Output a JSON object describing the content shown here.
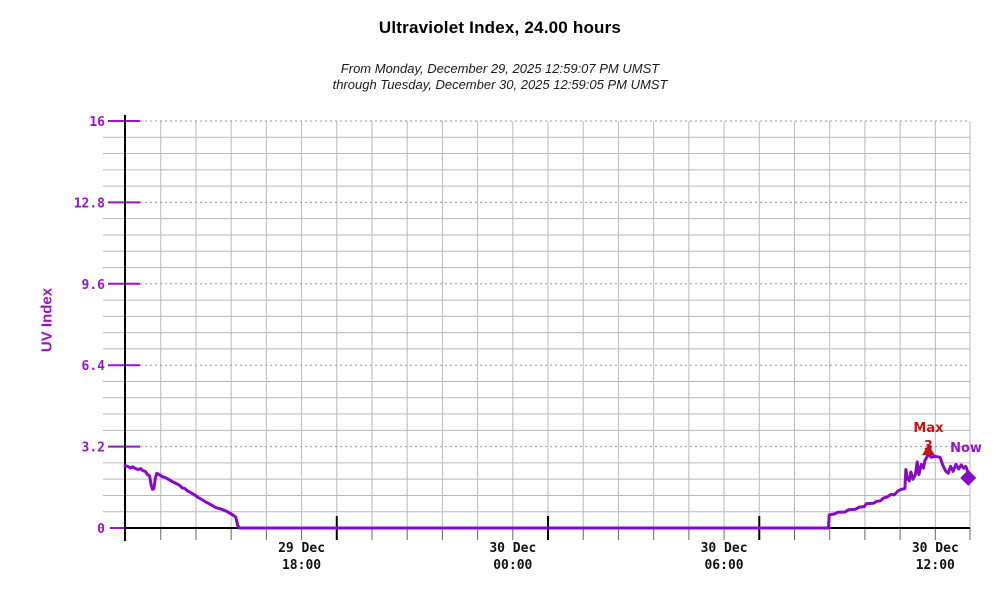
{
  "header": {
    "title": "Ultraviolet Index, 24.00 hours",
    "subtitle_line1": "From Monday, December 29, 2025 12:59:07 PM UMST",
    "subtitle_line2": "through Tuesday, December 30, 2025 12:59:05 PM UMST"
  },
  "colors": {
    "line": "#8808c8",
    "purple_text": "#9913cc",
    "max_red": "#cc1111",
    "grid_minor": "#b9b9b9",
    "grid_major_dotted": "#9a9a9a",
    "axis": "#000000",
    "x_label": "#111111",
    "minor_tick": "#666666"
  },
  "chart_data": {
    "type": "line",
    "title": "Ultraviolet Index, 24.00 hours",
    "xlabel": "",
    "ylabel": "UV Index",
    "ylim": [
      0,
      16
    ],
    "xlim_hours": [
      0,
      24
    ],
    "grid": "on",
    "y_ticks_major": [
      0,
      3.2,
      6.4,
      9.6,
      12.8,
      16
    ],
    "y_minor_step": 0.64,
    "x_minor_step_hours": 1,
    "x_first_hour_offset": 0.015,
    "x_ticks_major": [
      {
        "hour": 5.015,
        "line1": "29 Dec",
        "line2": "18:00"
      },
      {
        "hour": 11.015,
        "line1": "30 Dec",
        "line2": "00:00"
      },
      {
        "hour": 17.015,
        "line1": "30 Dec",
        "line2": "06:00"
      },
      {
        "hour": 23.015,
        "line1": "30 Dec",
        "line2": "12:00"
      }
    ],
    "series": [
      {
        "name": "UV Index",
        "points": [
          [
            0,
            2.45
          ],
          [
            0.08,
            2.42
          ],
          [
            0.15,
            2.36
          ],
          [
            0.22,
            2.4
          ],
          [
            0.3,
            2.33
          ],
          [
            0.38,
            2.3
          ],
          [
            0.45,
            2.33
          ],
          [
            0.5,
            2.26
          ],
          [
            0.58,
            2.22
          ],
          [
            0.64,
            2.1
          ],
          [
            0.7,
            2.05
          ],
          [
            0.74,
            1.7
          ],
          [
            0.78,
            1.52
          ],
          [
            0.82,
            1.55
          ],
          [
            0.86,
            1.95
          ],
          [
            0.9,
            2.15
          ],
          [
            0.98,
            2.1
          ],
          [
            1.05,
            2.02
          ],
          [
            1.15,
            1.98
          ],
          [
            1.25,
            1.9
          ],
          [
            1.35,
            1.82
          ],
          [
            1.45,
            1.75
          ],
          [
            1.55,
            1.68
          ],
          [
            1.62,
            1.58
          ],
          [
            1.7,
            1.55
          ],
          [
            1.78,
            1.45
          ],
          [
            1.88,
            1.38
          ],
          [
            1.98,
            1.3
          ],
          [
            2.08,
            1.2
          ],
          [
            2.18,
            1.12
          ],
          [
            2.28,
            1.03
          ],
          [
            2.38,
            0.96
          ],
          [
            2.48,
            0.88
          ],
          [
            2.58,
            0.8
          ],
          [
            2.68,
            0.76
          ],
          [
            2.78,
            0.72
          ],
          [
            2.88,
            0.66
          ],
          [
            2.98,
            0.58
          ],
          [
            3.08,
            0.5
          ],
          [
            3.15,
            0.42
          ],
          [
            3.2,
            0.1
          ],
          [
            3.25,
            0
          ],
          [
            19.98,
            0
          ],
          [
            20.0,
            0.52
          ],
          [
            20.15,
            0.55
          ],
          [
            20.25,
            0.62
          ],
          [
            20.45,
            0.63
          ],
          [
            20.55,
            0.72
          ],
          [
            20.75,
            0.74
          ],
          [
            20.85,
            0.82
          ],
          [
            21.0,
            0.84
          ],
          [
            21.05,
            0.95
          ],
          [
            21.25,
            0.97
          ],
          [
            21.35,
            1.05
          ],
          [
            21.45,
            1.07
          ],
          [
            21.55,
            1.18
          ],
          [
            21.65,
            1.22
          ],
          [
            21.75,
            1.32
          ],
          [
            21.85,
            1.3
          ],
          [
            21.95,
            1.45
          ],
          [
            22.05,
            1.52
          ],
          [
            22.15,
            1.55
          ],
          [
            22.18,
            2.3
          ],
          [
            22.22,
            1.95
          ],
          [
            22.28,
            1.85
          ],
          [
            22.32,
            2.2
          ],
          [
            22.38,
            1.92
          ],
          [
            22.45,
            2.1
          ],
          [
            22.5,
            2.6
          ],
          [
            22.55,
            2.1
          ],
          [
            22.62,
            2.5
          ],
          [
            22.68,
            2.35
          ],
          [
            22.72,
            2.65
          ],
          [
            22.78,
            2.8
          ],
          [
            22.82,
            2.9
          ],
          [
            22.9,
            2.78
          ],
          [
            23.0,
            2.82
          ],
          [
            23.08,
            2.8
          ],
          [
            23.15,
            2.78
          ],
          [
            23.22,
            2.5
          ],
          [
            23.3,
            2.25
          ],
          [
            23.38,
            2.15
          ],
          [
            23.45,
            2.42
          ],
          [
            23.52,
            2.22
          ],
          [
            23.6,
            2.5
          ],
          [
            23.68,
            2.32
          ],
          [
            23.75,
            2.48
          ],
          [
            23.82,
            2.35
          ],
          [
            23.88,
            2.42
          ],
          [
            23.94,
            2.2
          ]
        ]
      }
    ],
    "annotations": {
      "max": {
        "label": "Max",
        "value_label": "3",
        "hour": 22.82,
        "value": 2.9,
        "marker": "triangle-up"
      },
      "now": {
        "label": "Now",
        "hour": 23.95,
        "value": 1.97,
        "marker": "diamond"
      }
    }
  }
}
